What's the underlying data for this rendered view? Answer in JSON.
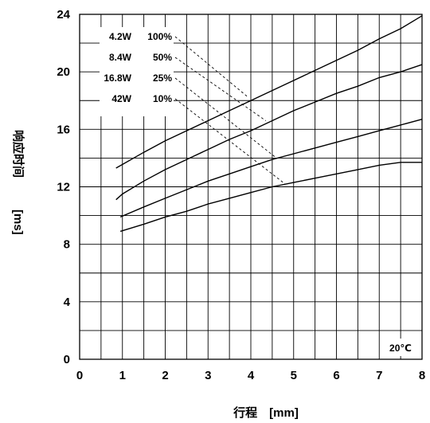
{
  "chart_data": {
    "type": "line",
    "xlabel": "行程　[mm]",
    "ylabel_top": "响应时间",
    "ylabel_bottom": "[ms]",
    "xlim": [
      0,
      8
    ],
    "ylim": [
      0,
      24
    ],
    "x_ticks": [
      0,
      1,
      2,
      3,
      4,
      5,
      6,
      7,
      8
    ],
    "y_ticks": [
      0,
      4,
      8,
      12,
      16,
      20,
      24
    ],
    "x_grid_step": 0.5,
    "y_grid_step": 2,
    "grid": true,
    "annotation": "20℃",
    "series": [
      {
        "name": "4.2W 100%",
        "power": "4.2W",
        "duty": "100%",
        "x": [
          0.85,
          1.5,
          2.0,
          2.5,
          3.0,
          3.5,
          4.0,
          4.5,
          5.0,
          5.5,
          6.0,
          6.5,
          7.0,
          7.5,
          8.0
        ],
        "y": [
          13.3,
          14.4,
          15.2,
          15.9,
          16.6,
          17.3,
          18.0,
          18.7,
          19.4,
          20.1,
          20.8,
          21.5,
          22.3,
          23.0,
          23.9
        ]
      },
      {
        "name": "8.4W 50%",
        "power": "8.4W",
        "duty": "50%",
        "x": [
          0.85,
          1.0,
          1.5,
          2.0,
          2.5,
          3.0,
          3.5,
          4.0,
          4.5,
          5.0,
          5.5,
          6.0,
          6.5,
          7.0,
          7.5,
          8.0
        ],
        "y": [
          11.1,
          11.5,
          12.4,
          13.2,
          13.9,
          14.6,
          15.3,
          15.9,
          16.6,
          17.3,
          17.9,
          18.5,
          19.0,
          19.6,
          20.0,
          20.5
        ]
      },
      {
        "name": "16.8W 25%",
        "power": "16.8W",
        "duty": "25%",
        "x": [
          0.95,
          1.5,
          2.0,
          2.5,
          3.0,
          3.5,
          4.0,
          4.5,
          5.0,
          5.5,
          6.0,
          6.5,
          7.0,
          7.5,
          8.0
        ],
        "y": [
          9.9,
          10.6,
          11.2,
          11.8,
          12.4,
          12.9,
          13.4,
          13.9,
          14.3,
          14.7,
          15.1,
          15.5,
          15.9,
          16.3,
          16.7
        ]
      },
      {
        "name": "42W 10%",
        "power": "42W",
        "duty": "10%",
        "x": [
          0.95,
          1.5,
          2.0,
          2.5,
          3.0,
          3.5,
          4.0,
          4.5,
          5.0,
          5.5,
          6.0,
          6.5,
          7.0,
          7.5,
          8.0
        ],
        "y": [
          8.9,
          9.4,
          9.9,
          10.3,
          10.8,
          11.2,
          11.6,
          12.0,
          12.3,
          12.6,
          12.9,
          13.2,
          13.5,
          13.7,
          13.7
        ]
      }
    ]
  }
}
